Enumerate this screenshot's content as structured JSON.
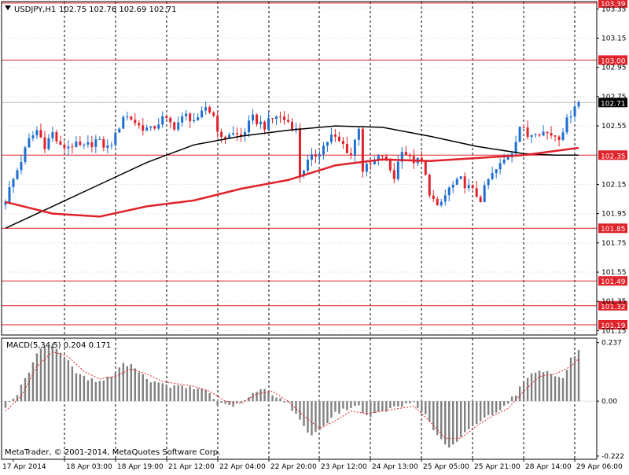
{
  "header": {
    "symbol": "USDJPY,H1",
    "ohlc": "102.75 102.76 102.69 102.71",
    "dropdown_icon": "triangle-down-icon"
  },
  "copyright": "MetaTrader, © 2001-2014, MetaQuotes Software Corp.",
  "colors": {
    "background": "#ffffff",
    "grid": "#000000",
    "bull": "#1e6fd0",
    "bear": "#e0222a",
    "level_line": "#e0222a",
    "ma_fast": "#e0222a",
    "ma_slow": "#000000",
    "macd_hist": "#808080",
    "macd_signal": "#e0222a"
  },
  "chart_data": [
    {
      "type": "candlestick",
      "title": "USDJPY,H1",
      "ylim": [
        101.12,
        103.4
      ],
      "y_ticks": [
        "103.35",
        "103.15",
        "102.95",
        "102.75",
        "102.55",
        "102.15",
        "101.95",
        "101.75",
        "101.55",
        "101.35",
        "101.15"
      ],
      "x_ticks": [
        "17 Apr 2014",
        "18 Apr 03:00",
        "18 Apr 19:00",
        "21 Apr 12:00",
        "22 Apr 04:00",
        "22 Apr 20:00",
        "23 Apr 12:00",
        "24 Apr 13:00",
        "25 Apr 05:00",
        "25 Apr 21:00",
        "28 Apr 14:00",
        "29 Apr 06:00"
      ],
      "current_price": "102.71",
      "level_lines": [
        "103.39",
        "103.00",
        "102.35",
        "101.85",
        "101.49",
        "101.32",
        "101.19"
      ],
      "close_path": [
        [
          0,
          102.05
        ],
        [
          3,
          102.25
        ],
        [
          6,
          102.45
        ],
        [
          8,
          102.52
        ],
        [
          10,
          102.42
        ],
        [
          12,
          102.5
        ],
        [
          14,
          102.4
        ],
        [
          17,
          102.42
        ],
        [
          20,
          102.4
        ],
        [
          23,
          102.45
        ],
        [
          26,
          102.4
        ],
        [
          28,
          102.48
        ],
        [
          30,
          102.62
        ],
        [
          32,
          102.6
        ],
        [
          34,
          102.55
        ],
        [
          37,
          102.52
        ],
        [
          40,
          102.6
        ],
        [
          43,
          102.55
        ],
        [
          46,
          102.62
        ],
        [
          49,
          102.58
        ],
        [
          51,
          102.68
        ],
        [
          53,
          102.62
        ],
        [
          55,
          102.45
        ],
        [
          57,
          102.5
        ],
        [
          60,
          102.48
        ],
        [
          63,
          102.6
        ],
        [
          66,
          102.55
        ],
        [
          69,
          102.62
        ],
        [
          72,
          102.58
        ],
        [
          74,
          102.52
        ],
        [
          75,
          102.22
        ],
        [
          77,
          102.3
        ],
        [
          80,
          102.38
        ],
        [
          83,
          102.48
        ],
        [
          86,
          102.42
        ],
        [
          88,
          102.35
        ],
        [
          90,
          102.55
        ],
        [
          91,
          102.25
        ],
        [
          93,
          102.28
        ],
        [
          96,
          102.35
        ],
        [
          99,
          102.2
        ],
        [
          101,
          102.4
        ],
        [
          103,
          102.32
        ],
        [
          106,
          102.3
        ],
        [
          108,
          102.1
        ],
        [
          110,
          101.98
        ],
        [
          113,
          102.12
        ],
        [
          116,
          102.18
        ],
        [
          119,
          102.1
        ],
        [
          121,
          102.05
        ],
        [
          123,
          102.18
        ],
        [
          126,
          102.28
        ],
        [
          129,
          102.38
        ],
        [
          131,
          102.55
        ],
        [
          133,
          102.48
        ],
        [
          135,
          102.52
        ],
        [
          138,
          102.5
        ],
        [
          141,
          102.48
        ],
        [
          143,
          102.58
        ],
        [
          145,
          102.7
        ],
        [
          146,
          102.71
        ]
      ],
      "ma_fast": [
        [
          0,
          102.03
        ],
        [
          12,
          101.95
        ],
        [
          24,
          101.93
        ],
        [
          36,
          102.0
        ],
        [
          48,
          102.04
        ],
        [
          60,
          102.12
        ],
        [
          72,
          102.18
        ],
        [
          84,
          102.28
        ],
        [
          96,
          102.32
        ],
        [
          108,
          102.31
        ],
        [
          120,
          102.33
        ],
        [
          132,
          102.35
        ],
        [
          146,
          102.4
        ]
      ],
      "ma_slow": [
        [
          0,
          101.85
        ],
        [
          12,
          102.0
        ],
        [
          24,
          102.15
        ],
        [
          36,
          102.3
        ],
        [
          48,
          102.42
        ],
        [
          60,
          102.48
        ],
        [
          72,
          102.52
        ],
        [
          84,
          102.55
        ],
        [
          96,
          102.54
        ],
        [
          108,
          102.48
        ],
        [
          120,
          102.41
        ],
        [
          132,
          102.36
        ],
        [
          140,
          102.35
        ],
        [
          146,
          102.35
        ]
      ]
    },
    {
      "type": "bar",
      "title": "MACD(5,34,5) 0.204 0.171",
      "ylim": [
        -0.235,
        0.255
      ],
      "y_ticks": [
        "0.237",
        "0.00",
        "-0.222"
      ],
      "hist_path": [
        [
          0,
          -0.02
        ],
        [
          3,
          0.03
        ],
        [
          6,
          0.12
        ],
        [
          9,
          0.22
        ],
        [
          12,
          0.23
        ],
        [
          15,
          0.18
        ],
        [
          18,
          0.12
        ],
        [
          21,
          0.09
        ],
        [
          24,
          0.08
        ],
        [
          27,
          0.1
        ],
        [
          30,
          0.15
        ],
        [
          33,
          0.14
        ],
        [
          36,
          0.09
        ],
        [
          39,
          0.07
        ],
        [
          42,
          0.06
        ],
        [
          45,
          0.06
        ],
        [
          48,
          0.05
        ],
        [
          51,
          0.05
        ],
        [
          54,
          -0.01
        ],
        [
          57,
          -0.02
        ],
        [
          60,
          -0.01
        ],
        [
          63,
          0.03
        ],
        [
          66,
          0.05
        ],
        [
          69,
          0.02
        ],
        [
          72,
          -0.01
        ],
        [
          75,
          -0.08
        ],
        [
          78,
          -0.14
        ],
        [
          81,
          -0.1
        ],
        [
          84,
          -0.05
        ],
        [
          87,
          -0.03
        ],
        [
          90,
          -0.02
        ],
        [
          92,
          -0.06
        ],
        [
          95,
          -0.05
        ],
        [
          98,
          -0.03
        ],
        [
          101,
          -0.02
        ],
        [
          104,
          0.0
        ],
        [
          107,
          -0.06
        ],
        [
          110,
          -0.14
        ],
        [
          113,
          -0.19
        ],
        [
          115,
          -0.17
        ],
        [
          118,
          -0.11
        ],
        [
          121,
          -0.08
        ],
        [
          124,
          -0.05
        ],
        [
          127,
          -0.02
        ],
        [
          130,
          0.03
        ],
        [
          133,
          0.1
        ],
        [
          136,
          0.13
        ],
        [
          139,
          0.11
        ],
        [
          142,
          0.09
        ],
        [
          144,
          0.17
        ],
        [
          146,
          0.204
        ]
      ],
      "signal_path": [
        [
          0,
          -0.04
        ],
        [
          4,
          0.02
        ],
        [
          8,
          0.14
        ],
        [
          12,
          0.2
        ],
        [
          16,
          0.18
        ],
        [
          20,
          0.12
        ],
        [
          24,
          0.09
        ],
        [
          28,
          0.1
        ],
        [
          32,
          0.13
        ],
        [
          36,
          0.11
        ],
        [
          40,
          0.08
        ],
        [
          44,
          0.07
        ],
        [
          48,
          0.06
        ],
        [
          52,
          0.04
        ],
        [
          56,
          0.0
        ],
        [
          60,
          -0.01
        ],
        [
          64,
          0.03
        ],
        [
          68,
          0.04
        ],
        [
          72,
          0.0
        ],
        [
          76,
          -0.06
        ],
        [
          80,
          -0.11
        ],
        [
          84,
          -0.08
        ],
        [
          88,
          -0.04
        ],
        [
          92,
          -0.05
        ],
        [
          96,
          -0.04
        ],
        [
          100,
          -0.03
        ],
        [
          104,
          -0.02
        ],
        [
          108,
          -0.08
        ],
        [
          112,
          -0.15
        ],
        [
          116,
          -0.15
        ],
        [
          120,
          -0.1
        ],
        [
          124,
          -0.06
        ],
        [
          128,
          -0.03
        ],
        [
          132,
          0.04
        ],
        [
          136,
          0.1
        ],
        [
          140,
          0.11
        ],
        [
          144,
          0.14
        ],
        [
          146,
          0.171
        ]
      ]
    }
  ]
}
